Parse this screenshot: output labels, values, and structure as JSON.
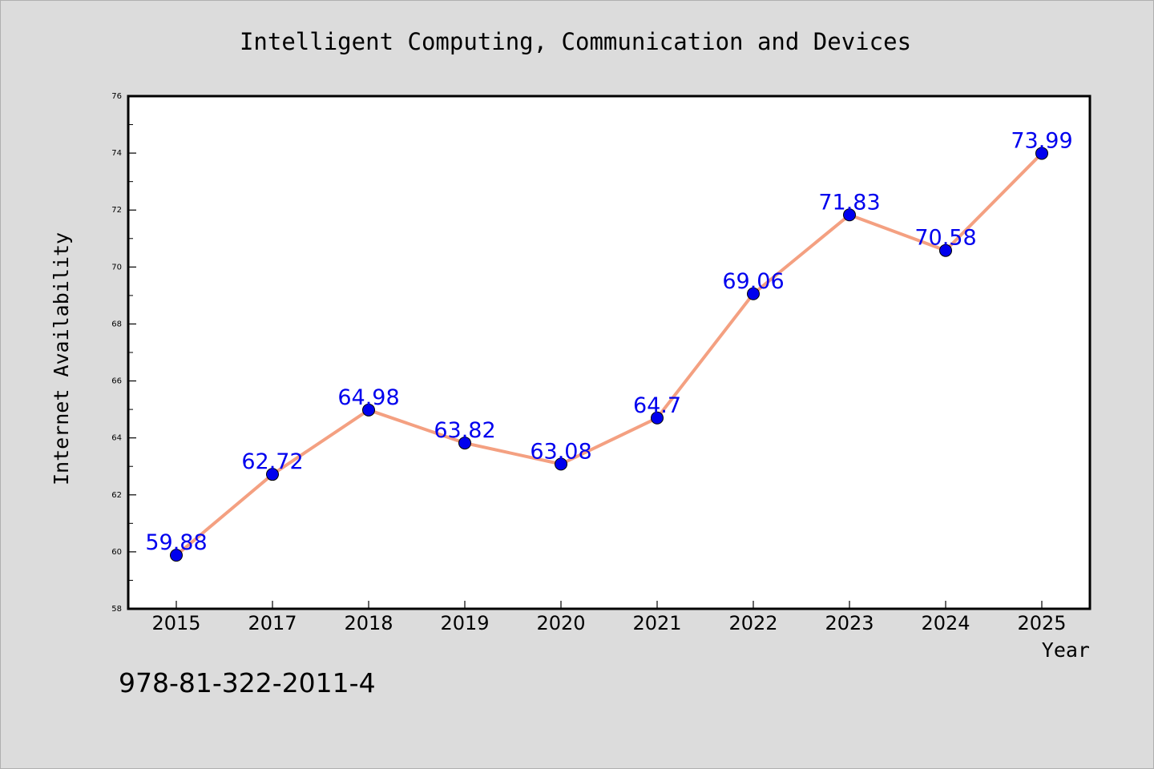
{
  "chart_data": {
    "type": "line",
    "title": "Intelligent Computing, Communication and Devices",
    "xlabel": "Year",
    "ylabel": "Internet Availability",
    "categories": [
      "2015",
      "2017",
      "2018",
      "2019",
      "2020",
      "2021",
      "2022",
      "2023",
      "2024",
      "2025"
    ],
    "series": [
      {
        "values": [
          59.88,
          62.72,
          64.98,
          63.82,
          63.08,
          64.7,
          69.06,
          71.83,
          70.58,
          73.99
        ],
        "labels": [
          "59.88",
          "62.72",
          "64.98",
          "63.82",
          "63.08",
          "64.7",
          "69.06",
          "71.83",
          "70.58",
          "73.99"
        ]
      }
    ],
    "ylim": [
      58,
      76
    ],
    "yticks": [
      58,
      60,
      62,
      64,
      66,
      68,
      70,
      72,
      74,
      76
    ],
    "grid": false,
    "legend": "none"
  },
  "annotation": "978-81-322-2011-4",
  "colors": {
    "background": "#dcdcdc",
    "plot_area": "#ffffff",
    "line": "#f4a081",
    "marker": "#0000ee",
    "data_label": "#0000ee",
    "text": "#000000"
  }
}
